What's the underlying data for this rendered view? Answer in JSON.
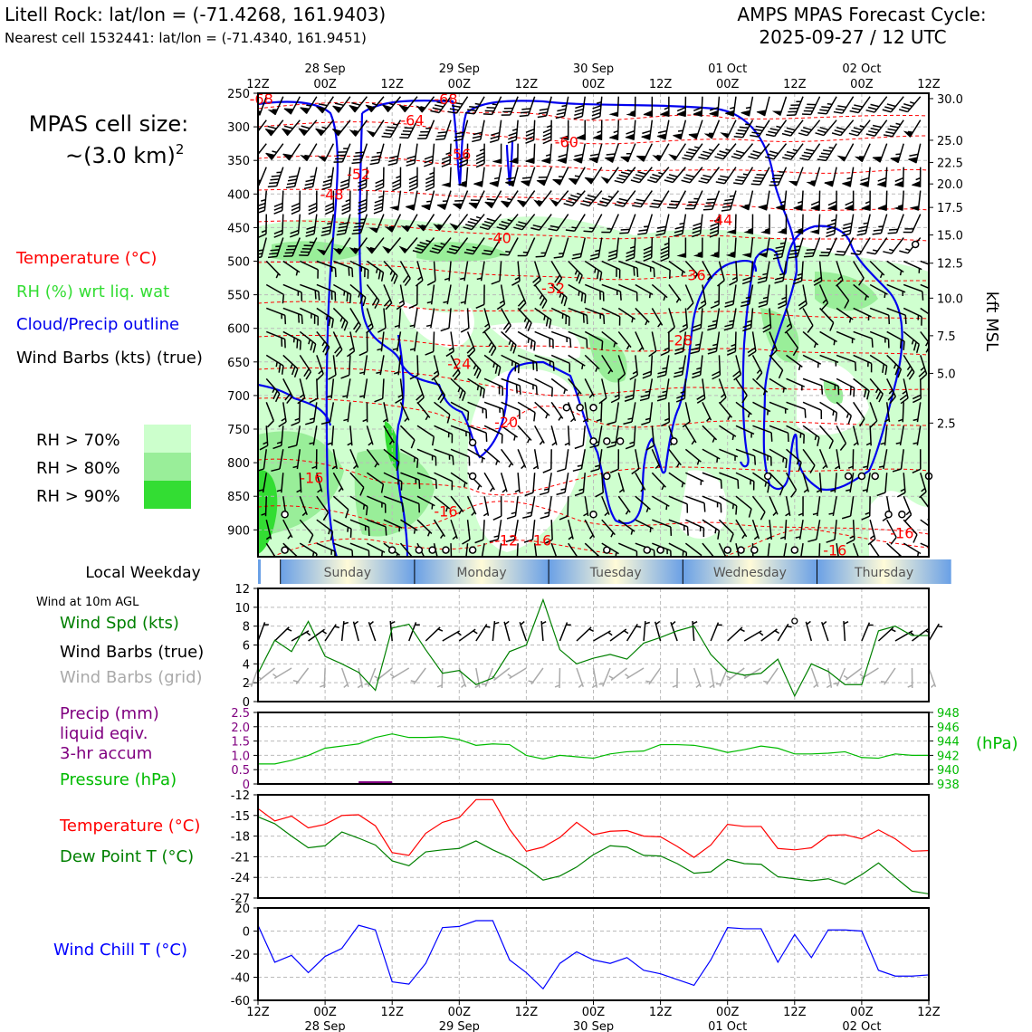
{
  "header": {
    "station": "Litell Rock: lat/lon = (-71.4268, 161.9403)",
    "nearest": "Nearest cell 1532441: lat/lon = (-71.4340, 161.9451)",
    "cycle_line1": "AMPS MPAS Forecast Cycle:",
    "cycle_line2": "2025-09-27 / 12 UTC"
  },
  "legend": {
    "cell_size_line1": "MPAS cell size:",
    "cell_size_line2": "~(3.0 km)",
    "cell_size_sup": "2",
    "temperature": "Temperature (°C)",
    "rh": "RH (%) wrt liq. wat",
    "cloud": "Cloud/Precip outline",
    "barbs": "Wind Barbs (kts) (true)",
    "rh70": "RH > 70%",
    "rh80": "RH > 80%",
    "rh90": "RH > 90%"
  },
  "weekday": {
    "title": "Local Weekday",
    "days": [
      "Sunday",
      "Monday",
      "Tuesday",
      "Wednesday",
      "Thursday"
    ]
  },
  "wind_panel_labels": {
    "title": "Wind at 10m AGL",
    "spd": "Wind Spd (kts)",
    "barbs_true": "Wind Barbs (true)",
    "barbs_grid": "Wind Barbs (grid)"
  },
  "precip_labels": {
    "line1": "Precip (mm)",
    "line2": "liquid eqiv.",
    "line3": "3-hr accum",
    "pressure": "Pressure (hPa)",
    "right_unit": "(hPa)"
  },
  "temp_labels": {
    "temp": "Temperature (°C)",
    "dew": "Dew Point T (°C)"
  },
  "chill_labels": {
    "chill": "Wind Chill T (°C)"
  },
  "time_axis": {
    "ticks": [
      "12Z",
      "00Z",
      "12Z",
      "00Z",
      "12Z",
      "00Z",
      "12Z",
      "00Z",
      "12Z",
      "00Z",
      "12Z"
    ],
    "dates": [
      "28 Sep",
      "29 Sep",
      "30 Sep",
      "01 Oct",
      "02 Oct"
    ]
  },
  "colors": {
    "temperature": "#ff0000",
    "rh70": "#ccffcc",
    "rh80": "#99ee99",
    "rh90": "#33dd33",
    "cloud": "#0000ee",
    "pressure": "#00bb00",
    "precip": "#800080",
    "dewpoint": "#008000",
    "windchill": "#0000ff"
  },
  "chart_data": [
    {
      "type": "heatmap",
      "name": "time-height cross section",
      "y_axis": "pressure (hPa)",
      "ylim": [
        940,
        250
      ],
      "y_ticks": [
        250,
        300,
        350,
        400,
        450,
        500,
        550,
        600,
        650,
        700,
        750,
        800,
        850,
        900
      ],
      "right_axis_label": "kft MSL",
      "right_ticks": [
        30.0,
        25.0,
        22.5,
        20.0,
        17.5,
        15.0,
        12.5,
        10.0,
        7.5,
        5.0,
        2.5
      ],
      "right_tick_pressure": [
        258,
        320,
        353,
        385,
        420,
        461,
        503,
        555,
        611,
        667,
        741
      ],
      "temperature_labels": [
        {
          "text": "-68",
          "t": 0.5,
          "p": 258
        },
        {
          "text": "-68",
          "t": 28,
          "p": 258
        },
        {
          "text": "-64",
          "t": 23,
          "p": 290
        },
        {
          "text": "-60",
          "t": 46,
          "p": 322
        },
        {
          "text": "-56",
          "t": 30,
          "p": 340
        },
        {
          "text": "-52",
          "t": 15,
          "p": 370
        },
        {
          "text": "-48",
          "t": 11,
          "p": 400
        },
        {
          "text": "-44",
          "t": 69,
          "p": 438
        },
        {
          "text": "-40",
          "t": 36,
          "p": 465
        },
        {
          "text": "-36",
          "t": 65,
          "p": 520
        },
        {
          "text": "-32",
          "t": 44,
          "p": 540
        },
        {
          "text": "-28",
          "t": 63,
          "p": 617
        },
        {
          "text": "-24",
          "t": 30,
          "p": 652
        },
        {
          "text": "-20",
          "t": 37,
          "p": 739
        },
        {
          "text": "-16",
          "t": 8,
          "p": 822
        },
        {
          "text": "-16",
          "t": 28,
          "p": 872
        },
        {
          "text": "-12",
          "t": 37,
          "p": 915
        },
        {
          "text": "-16",
          "t": 42,
          "p": 915
        },
        {
          "text": "-16",
          "t": 96,
          "p": 904
        },
        {
          "text": "-16",
          "t": 86,
          "p": 930
        }
      ],
      "calm_marks": [
        {
          "t": 98,
          "p": 475
        },
        {
          "t": 46,
          "p": 718
        },
        {
          "t": 48,
          "p": 718
        },
        {
          "t": 50,
          "p": 718
        },
        {
          "t": 32,
          "p": 770
        },
        {
          "t": 50,
          "p": 768
        },
        {
          "t": 52,
          "p": 768
        },
        {
          "t": 54,
          "p": 768
        },
        {
          "t": 62,
          "p": 768
        },
        {
          "t": 32,
          "p": 820
        },
        {
          "t": 52,
          "p": 820
        },
        {
          "t": 76,
          "p": 820
        },
        {
          "t": 88,
          "p": 820
        },
        {
          "t": 90,
          "p": 820
        },
        {
          "t": 92,
          "p": 820
        },
        {
          "t": 100,
          "p": 820
        },
        {
          "t": 50,
          "p": 877
        },
        {
          "t": 4,
          "p": 877
        },
        {
          "t": 94,
          "p": 877
        },
        {
          "t": 96,
          "p": 877
        },
        {
          "t": 4,
          "p": 930
        },
        {
          "t": 20,
          "p": 930
        },
        {
          "t": 24,
          "p": 930
        },
        {
          "t": 26,
          "p": 930
        },
        {
          "t": 28,
          "p": 930
        },
        {
          "t": 32,
          "p": 930
        },
        {
          "t": 52,
          "p": 930
        },
        {
          "t": 58,
          "p": 930
        },
        {
          "t": 60,
          "p": 930
        },
        {
          "t": 70,
          "p": 930
        },
        {
          "t": 72,
          "p": 930
        },
        {
          "t": 74,
          "p": 930
        },
        {
          "t": 80,
          "p": 930
        }
      ]
    },
    {
      "type": "line",
      "name": "10m wind speed",
      "ylabel": "Wind Spd (kts)",
      "ylim": [
        0,
        12
      ],
      "y_ticks": [
        0,
        2,
        4,
        6,
        8,
        10,
        12
      ],
      "x_hours": [
        0,
        3,
        6,
        9,
        12,
        15,
        18,
        21,
        24,
        27,
        30,
        33,
        36,
        39,
        42,
        45,
        48,
        51,
        54,
        57,
        60,
        63,
        66,
        69,
        72,
        75,
        78,
        81,
        84,
        87,
        90,
        93,
        96,
        99,
        102,
        105,
        108,
        111,
        114,
        117,
        120
      ],
      "values": [
        3.0,
        6.5,
        5.3,
        8.5,
        4.8,
        4.0,
        3.1,
        1.2,
        7.8,
        8.2,
        5.5,
        3.0,
        3.3,
        1.8,
        2.5,
        5.3,
        6.0,
        10.8,
        5.5,
        4.0,
        4.6,
        5.0,
        4.5,
        6.2,
        6.8,
        7.5,
        8.0,
        5.0,
        3.2,
        2.8,
        3.0,
        4.5,
        0.6,
        4.0,
        3.2,
        1.8,
        1.8,
        7.5,
        8.0,
        7.0,
        7.0
      ]
    },
    {
      "type": "line",
      "name": "precip and pressure",
      "series": [
        {
          "name": "Precip (mm)",
          "axis": "left",
          "ylim": [
            0,
            2.5
          ],
          "y_ticks": [
            0,
            0.5,
            1.0,
            1.5,
            2.0,
            2.5
          ],
          "x_hours": [
            18,
            24
          ],
          "values": [
            0.03,
            0.03
          ]
        },
        {
          "name": "Pressure (hPa)",
          "axis": "right",
          "ylim": [
            938,
            948
          ],
          "y_ticks": [
            938,
            940,
            942,
            944,
            946,
            948
          ],
          "x_hours": [
            0,
            3,
            6,
            9,
            12,
            15,
            18,
            21,
            24,
            27,
            30,
            33,
            36,
            39,
            42,
            45,
            48,
            51,
            54,
            57,
            60,
            63,
            66,
            69,
            72,
            75,
            78,
            81,
            84,
            87,
            90,
            93,
            96,
            99,
            102,
            105,
            108,
            111,
            114,
            117,
            120
          ],
          "values": [
            940.8,
            940.8,
            941.3,
            942.0,
            943.0,
            943.3,
            943.6,
            944.5,
            945.0,
            944.5,
            944.5,
            944.6,
            944.2,
            943.4,
            943.6,
            943.5,
            942.0,
            941.5,
            942.0,
            941.8,
            941.6,
            942.2,
            942.5,
            942.6,
            943.5,
            943.5,
            943.4,
            943.0,
            942.4,
            942.8,
            943.3,
            943.0,
            942.2,
            942.2,
            942.3,
            942.5,
            941.7,
            941.6,
            942.2,
            942.0,
            942.0
          ]
        }
      ]
    },
    {
      "type": "line",
      "name": "temperature and dew point",
      "ylim": [
        -27,
        -12
      ],
      "y_ticks": [
        -27,
        -24,
        -21,
        -18,
        -15,
        -12
      ],
      "x_hours": [
        0,
        3,
        6,
        9,
        12,
        15,
        18,
        21,
        24,
        27,
        30,
        33,
        36,
        39,
        42,
        45,
        48,
        51,
        54,
        57,
        60,
        63,
        66,
        69,
        72,
        75,
        78,
        81,
        84,
        87,
        90,
        93,
        96,
        99,
        102,
        105,
        108,
        111,
        114,
        117,
        120
      ],
      "series": [
        {
          "name": "Temperature (°C)",
          "values": [
            -14.0,
            -15.8,
            -15.1,
            -16.8,
            -16.3,
            -15.0,
            -14.9,
            -16.5,
            -20.4,
            -20.8,
            -17.6,
            -16.0,
            -15.3,
            -12.7,
            -12.7,
            -17.0,
            -20.2,
            -19.6,
            -18.2,
            -16.0,
            -17.8,
            -17.3,
            -17.2,
            -18.0,
            -18.1,
            -19.5,
            -21.1,
            -19.3,
            -16.3,
            -16.6,
            -16.6,
            -19.8,
            -20.0,
            -19.7,
            -17.9,
            -17.8,
            -18.4,
            -17.1,
            -18.4,
            -20.2,
            -20.1
          ]
        },
        {
          "name": "Dew Point T (°C)",
          "values": [
            -15.2,
            -16.2,
            -18.0,
            -19.7,
            -19.4,
            -17.4,
            -18.3,
            -19.3,
            -21.6,
            -22.3,
            -20.3,
            -20.0,
            -19.8,
            -18.7,
            -20.0,
            -21.1,
            -22.6,
            -24.4,
            -23.8,
            -22.5,
            -20.7,
            -19.4,
            -19.6,
            -20.8,
            -20.9,
            -22.0,
            -23.4,
            -23.2,
            -21.4,
            -22.0,
            -22.1,
            -23.9,
            -24.2,
            -24.5,
            -24.2,
            -25.0,
            -23.6,
            -21.9,
            -24.0,
            -26.0,
            -26.4
          ]
        }
      ]
    },
    {
      "type": "line",
      "name": "wind chill",
      "ylabel": "Wind Chill T (°C)",
      "ylim": [
        -60,
        20
      ],
      "y_ticks": [
        -60,
        -40,
        -20,
        0,
        20
      ],
      "x_hours": [
        0,
        3,
        6,
        9,
        12,
        15,
        18,
        21,
        24,
        27,
        30,
        33,
        36,
        39,
        42,
        45,
        48,
        51,
        54,
        57,
        60,
        63,
        66,
        69,
        72,
        75,
        78,
        81,
        84,
        87,
        90,
        93,
        96,
        99,
        102,
        105,
        108,
        111,
        114,
        117,
        120
      ],
      "values": [
        5,
        -27,
        -21,
        -36,
        -22,
        -15,
        5,
        1,
        -44,
        -46,
        -28,
        3,
        4,
        9,
        9,
        -25,
        -36,
        -50,
        -28,
        -18,
        -25,
        -28,
        -23,
        -34,
        -37,
        -42,
        -47,
        -25,
        3,
        2,
        2,
        -27,
        -3,
        -23,
        1,
        1,
        0,
        -34,
        -39,
        -39,
        -38
      ]
    }
  ]
}
